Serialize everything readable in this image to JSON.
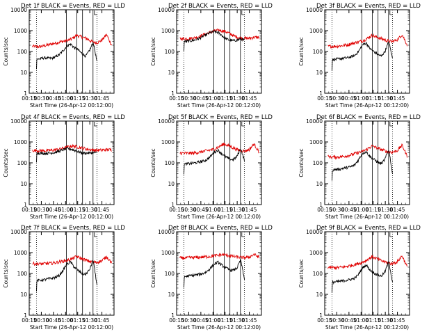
{
  "chart_data": {
    "type": "line",
    "panels": [
      {
        "title": "Det 1f BLACK = Events, RED = LLD",
        "events": {
          "start": 41,
          "plateau": [
            42,
            45,
            50,
            48,
            47,
            55,
            70,
            110,
            180,
            230,
            150,
            120,
            80,
            60,
            110,
            280,
            30
          ]
        },
        "lld": {
          "plateau": [
            180,
            170,
            175,
            200,
            230,
            260,
            300,
            330,
            400,
            600,
            500,
            420,
            300,
            260,
            340,
            650,
            200
          ]
        }
      },
      {
        "title": "Det 2f BLACK = Events, RED = LLD",
        "events": {
          "start": 300,
          "plateau": [
            300,
            310,
            330,
            360,
            420,
            520,
            650,
            800,
            900,
            820,
            600,
            420,
            350,
            330,
            350,
            400,
            350
          ]
        },
        "lld": {
          "plateau": [
            420,
            410,
            420,
            450,
            520,
            650,
            800,
            950,
            1050,
            960,
            760,
            560,
            460,
            430,
            430,
            480,
            480
          ]
        }
      },
      {
        "title": "Det 3f BLACK = Events, RED = LLD",
        "events": {
          "start": 35,
          "plateau": [
            40,
            42,
            45,
            48,
            50,
            55,
            65,
            100,
            200,
            260,
            140,
            100,
            75,
            60,
            100,
            300,
            45
          ]
        },
        "lld": {
          "plateau": [
            180,
            175,
            180,
            190,
            210,
            240,
            280,
            320,
            420,
            600,
            480,
            400,
            330,
            300,
            360,
            650,
            210
          ]
        }
      },
      {
        "title": "Det 4f BLACK = Events, RED = LLD",
        "events": {
          "start": 300,
          "plateau": [
            300,
            290,
            285,
            290,
            300,
            320,
            360,
            420,
            480,
            460,
            400,
            340,
            300,
            290,
            300,
            310,
            300
          ]
        },
        "lld": {
          "plateau": [
            400,
            390,
            380,
            380,
            400,
            430,
            480,
            560,
            640,
            600,
            520,
            460,
            420,
            400,
            410,
            430,
            420
          ]
        }
      },
      {
        "title": "Det 5f BLACK = Events, RED = LLD",
        "events": {
          "start": 80,
          "plateau": [
            85,
            90,
            95,
            100,
            110,
            120,
            140,
            200,
            320,
            400,
            280,
            200,
            150,
            140,
            200,
            500,
            130
          ]
        },
        "lld": {
          "plateau": [
            300,
            290,
            290,
            300,
            320,
            360,
            400,
            450,
            600,
            800,
            650,
            500,
            400,
            370,
            420,
            800,
            330
          ]
        }
      },
      {
        "title": "Det 6f BLACK = Events, RED = LLD",
        "events": {
          "start": 40,
          "plateau": [
            45,
            48,
            50,
            55,
            60,
            65,
            80,
            140,
            280,
            350,
            200,
            150,
            110,
            90,
            150,
            450,
            30
          ]
        },
        "lld": {
          "plateau": [
            200,
            190,
            190,
            200,
            220,
            250,
            300,
            350,
            450,
            650,
            520,
            420,
            350,
            320,
            380,
            700,
            210
          ]
        }
      },
      {
        "title": "Det 7f BLACK = Events, RED = LLD",
        "events": {
          "start": 40,
          "plateau": [
            45,
            48,
            50,
            55,
            58,
            65,
            80,
            140,
            280,
            360,
            200,
            140,
            100,
            90,
            150,
            450,
            25
          ]
        },
        "lld": {
          "plateau": [
            300,
            290,
            290,
            300,
            310,
            340,
            380,
            420,
            500,
            650,
            520,
            420,
            360,
            340,
            400,
            650,
            330
          ]
        }
      },
      {
        "title": "Det 8f BLACK = Events, RED = LLD",
        "events": {
          "start": 60,
          "plateau": [
            70,
            75,
            80,
            85,
            90,
            100,
            120,
            180,
            280,
            350,
            250,
            190,
            150,
            140,
            180,
            450,
            50
          ]
        },
        "lld": {
          "plateau": [
            550,
            560,
            570,
            580,
            600,
            620,
            650,
            700,
            760,
            800,
            720,
            650,
            600,
            580,
            600,
            820,
            600
          ]
        }
      },
      {
        "title": "Det 9f BLACK = Events, RED = LLD",
        "events": {
          "start": 35,
          "plateau": [
            38,
            40,
            42,
            45,
            48,
            52,
            60,
            90,
            180,
            260,
            150,
            110,
            85,
            75,
            120,
            400,
            35
          ]
        },
        "lld": {
          "plateau": [
            200,
            190,
            190,
            200,
            220,
            250,
            290,
            340,
            450,
            650,
            500,
            400,
            330,
            300,
            360,
            700,
            210
          ]
        }
      }
    ],
    "xlabel": "Start Time (26-Apr-12 00:12:00)",
    "ylabel": "Counts/sec",
    "xticks": [
      "00:15",
      "00:30",
      "00:45",
      "01:00",
      "01:15",
      "01:30",
      "01:45"
    ],
    "yticks": [
      "1",
      "10",
      "100",
      "1000",
      "10000"
    ],
    "ylim": [
      1,
      10000
    ],
    "ylog": true,
    "series": [
      {
        "name": "Events",
        "color": "#000000"
      },
      {
        "name": "LLD",
        "color": "#e00000"
      }
    ],
    "dotted_vlines_min": [
      12,
      87
    ],
    "solid_vlines_min": [
      49,
      62,
      69,
      82
    ]
  }
}
